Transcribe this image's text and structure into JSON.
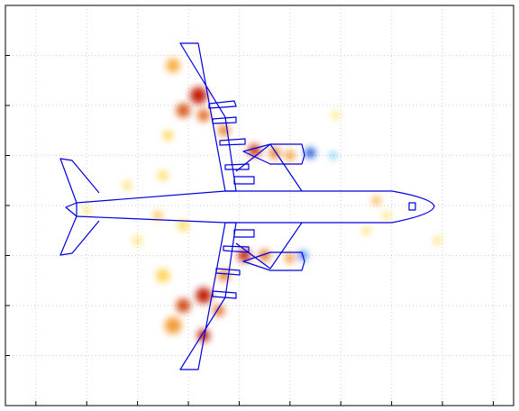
{
  "chart_data": {
    "type": "heatmap",
    "title": "",
    "xlabel": "",
    "ylabel": "",
    "grid": true,
    "tick_labels": "none",
    "xlim": [
      0,
      10
    ],
    "ylim": [
      0,
      8
    ],
    "x_ticks": [
      0.6,
      1.6,
      2.6,
      3.6,
      4.6,
      5.6,
      6.6,
      7.6,
      8.6,
      9.6
    ],
    "y_ticks": [
      1.0,
      2.0,
      3.0,
      4.0,
      5.0,
      6.0,
      7.0
    ],
    "colormap": "jet-on-white",
    "value_range": [
      -1,
      1
    ],
    "hotspots": [
      {
        "x": 3.8,
        "y": 6.2,
        "value": 0.95,
        "spread": 0.3
      },
      {
        "x": 3.5,
        "y": 5.9,
        "value": 0.8,
        "spread": 0.25
      },
      {
        "x": 3.9,
        "y": 5.8,
        "value": 0.75,
        "spread": 0.22
      },
      {
        "x": 4.3,
        "y": 5.5,
        "value": 0.7,
        "spread": 0.2
      },
      {
        "x": 3.3,
        "y": 6.8,
        "value": 0.55,
        "spread": 0.25
      },
      {
        "x": 4.9,
        "y": 5.1,
        "value": 0.9,
        "spread": 0.22
      },
      {
        "x": 5.3,
        "y": 5.05,
        "value": 0.7,
        "spread": 0.2
      },
      {
        "x": 5.6,
        "y": 5.0,
        "value": 0.6,
        "spread": 0.18
      },
      {
        "x": 6.0,
        "y": 5.05,
        "value": -0.95,
        "spread": 0.18
      },
      {
        "x": 6.45,
        "y": 5.0,
        "value": -0.4,
        "spread": 0.12
      },
      {
        "x": 3.5,
        "y": 3.6,
        "value": 0.3,
        "spread": 0.2
      },
      {
        "x": 3.1,
        "y": 4.6,
        "value": 0.3,
        "spread": 0.18
      },
      {
        "x": 3.0,
        "y": 3.8,
        "value": 0.5,
        "spread": 0.16
      },
      {
        "x": 4.7,
        "y": 3.0,
        "value": 0.95,
        "spread": 0.22
      },
      {
        "x": 5.1,
        "y": 3.0,
        "value": 0.75,
        "spread": 0.2
      },
      {
        "x": 5.6,
        "y": 2.95,
        "value": 0.6,
        "spread": 0.18
      },
      {
        "x": 5.85,
        "y": 3.0,
        "value": -0.8,
        "spread": 0.16
      },
      {
        "x": 4.3,
        "y": 2.6,
        "value": 0.7,
        "spread": 0.2
      },
      {
        "x": 3.9,
        "y": 2.2,
        "value": 0.95,
        "spread": 0.28
      },
      {
        "x": 3.5,
        "y": 2.0,
        "value": 0.85,
        "spread": 0.25
      },
      {
        "x": 3.9,
        "y": 1.4,
        "value": 0.95,
        "spread": 0.22
      },
      {
        "x": 3.3,
        "y": 1.6,
        "value": 0.6,
        "spread": 0.3
      },
      {
        "x": 4.2,
        "y": 1.9,
        "value": 0.75,
        "spread": 0.2
      },
      {
        "x": 3.1,
        "y": 2.6,
        "value": 0.35,
        "spread": 0.25
      },
      {
        "x": 7.3,
        "y": 4.1,
        "value": 0.55,
        "spread": 0.15
      },
      {
        "x": 7.1,
        "y": 3.5,
        "value": 0.3,
        "spread": 0.14
      },
      {
        "x": 7.5,
        "y": 3.8,
        "value": 0.3,
        "spread": 0.14
      },
      {
        "x": 8.5,
        "y": 3.3,
        "value": 0.3,
        "spread": 0.14
      },
      {
        "x": 2.4,
        "y": 4.4,
        "value": 0.3,
        "spread": 0.15
      },
      {
        "x": 1.6,
        "y": 3.9,
        "value": 0.25,
        "spread": 0.14
      },
      {
        "x": 6.5,
        "y": 5.8,
        "value": 0.25,
        "spread": 0.14
      },
      {
        "x": 3.2,
        "y": 5.4,
        "value": 0.35,
        "spread": 0.18
      },
      {
        "x": 2.6,
        "y": 3.3,
        "value": 0.25,
        "spread": 0.16
      }
    ],
    "overlay": "aircraft-outline",
    "outline_color": "#0000dd"
  }
}
